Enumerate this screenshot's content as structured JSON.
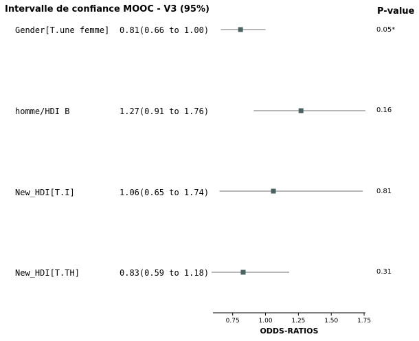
{
  "chart_data": {
    "type": "forest",
    "title": "Intervalle de confiance MOOC - V3 (95%)",
    "pvalue_header": "P-value",
    "xlabel": "ODDS-RATIOS",
    "xlim": [
      0.6,
      1.76
    ],
    "xticks": [
      0.75,
      1.0,
      1.25,
      1.5,
      1.75
    ],
    "xtick_labels": [
      "0.75",
      "1.00",
      "1.25",
      "1.50",
      "1.75"
    ],
    "marker_color": "#4a6360",
    "ci_line_color": "#8c8c8c",
    "rows": [
      {
        "label": "Gender[T.une femme]",
        "ci_text": "0.81(0.66 to 1.00)",
        "estimate": 0.81,
        "low": 0.66,
        "high": 1.0,
        "pvalue": "0.05*"
      },
      {
        "label": "homme/HDI B",
        "ci_text": "1.27(0.91 to 1.76)",
        "estimate": 1.27,
        "low": 0.91,
        "high": 1.76,
        "pvalue": "0.16"
      },
      {
        "label": "New_HDI[T.I]",
        "ci_text": "1.06(0.65 to 1.74)",
        "estimate": 1.06,
        "low": 0.65,
        "high": 1.74,
        "pvalue": "0.81"
      },
      {
        "label": "New_HDI[T.TH]",
        "ci_text": "0.83(0.59 to 1.18)",
        "estimate": 0.83,
        "low": 0.59,
        "high": 1.18,
        "pvalue": "0.31"
      }
    ]
  }
}
